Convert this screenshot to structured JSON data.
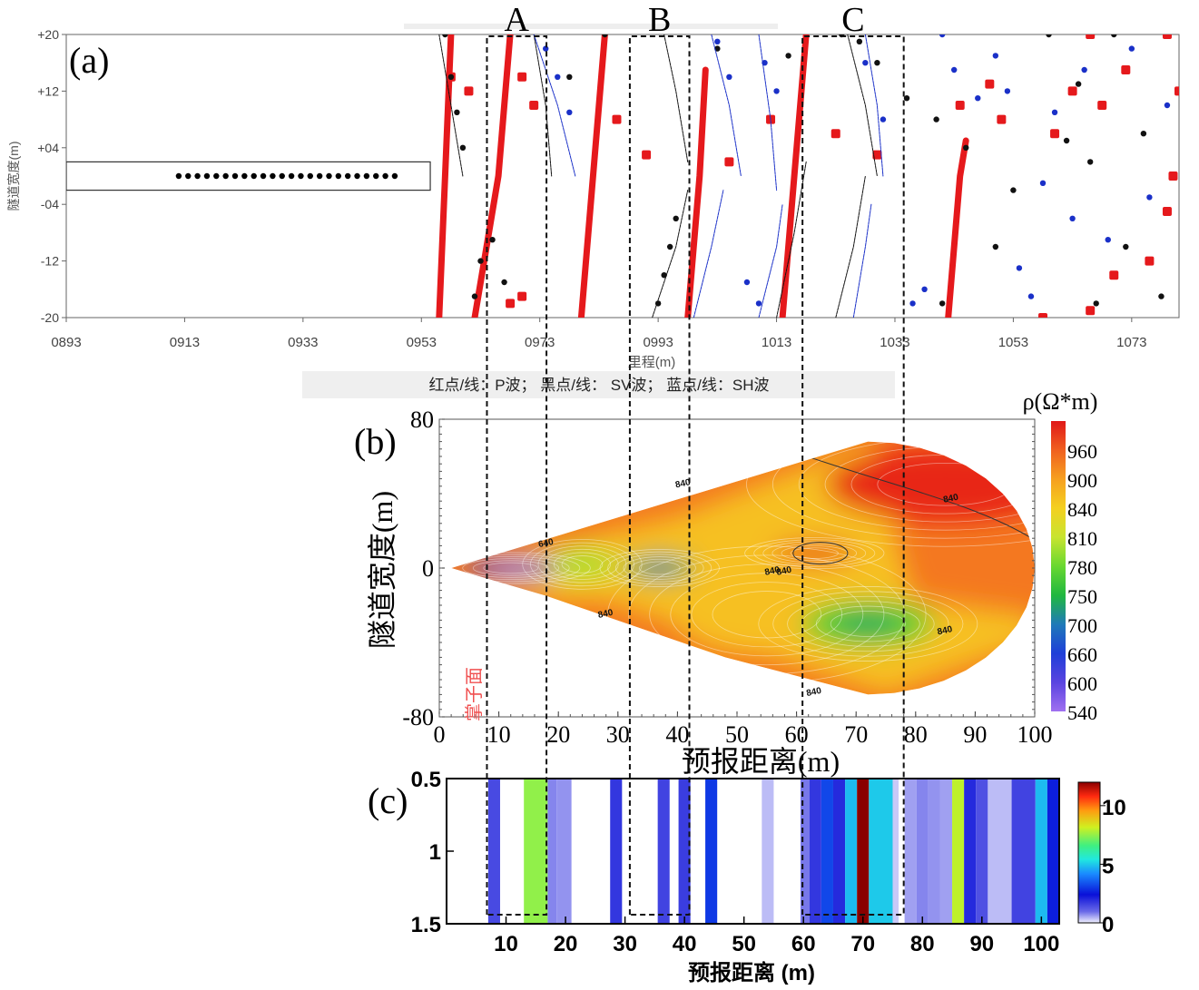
{
  "panel_labels": {
    "a": "(a)",
    "b": "(b)",
    "c": "(c)"
  },
  "zones": [
    {
      "label": "A",
      "from": 8,
      "to": 18
    },
    {
      "label": "B",
      "from": 32,
      "to": 42
    },
    {
      "label": "C",
      "from": 61,
      "to": 78
    }
  ],
  "chart_data": [
    {
      "type": "scatter",
      "panel": "a",
      "xlabel": "里程(m)",
      "ylabel": "隧道宽度(m)",
      "xticks": [
        "0893",
        "0913",
        "0933",
        "0953",
        "0973",
        "0993",
        "1013",
        "1033",
        "1053",
        "1073"
      ],
      "xlim": [
        893,
        1081
      ],
      "yticks": [
        "+20",
        "+12",
        "+04",
        "-04",
        "-12",
        "-20"
      ],
      "ylim": [
        -20,
        20
      ],
      "legend": "红点/线：P波； 黑点/线： SV波； 蓝点/线：SH波",
      "tunnel_box": {
        "x": [
          893,
          954.5
        ],
        "y": [
          -2,
          2
        ]
      },
      "sensor_points": {
        "x_from": 912,
        "x_to": 948.5,
        "count": 24,
        "y": 0
      },
      "series": [
        {
          "name": "P波",
          "color": "#e5191c",
          "lines": [
            [
              [
                956,
                -20
              ],
              [
                957,
                0
              ],
              [
                958,
                20
              ]
            ],
            [
              [
                962,
                -20
              ],
              [
                966,
                0
              ],
              [
                968,
                20
              ]
            ],
            [
              [
                980,
                -20
              ],
              [
                982,
                0
              ],
              [
                984,
                20
              ]
            ],
            [
              [
                998,
                -20
              ],
              [
                1000,
                0
              ],
              [
                1001,
                15
              ]
            ],
            [
              [
                1014,
                -20
              ],
              [
                1016,
                0
              ],
              [
                1018,
                20
              ]
            ],
            [
              [
                1042,
                -20
              ],
              [
                1044,
                0
              ],
              [
                1045,
                5
              ]
            ]
          ],
          "points": [
            [
              958,
              14
            ],
            [
              961,
              12
            ],
            [
              970,
              14
            ],
            [
              972,
              10
            ],
            [
              968,
              -18
            ],
            [
              970,
              -17
            ],
            [
              986,
              8
            ],
            [
              991,
              3
            ],
            [
              1005,
              2
            ],
            [
              1012,
              8
            ],
            [
              1023,
              6
            ],
            [
              1030,
              3
            ],
            [
              1044,
              10
            ],
            [
              1049,
              13
            ],
            [
              1051,
              8
            ],
            [
              1058,
              -20
            ],
            [
              1063,
              12
            ],
            [
              1066,
              20
            ],
            [
              1068,
              10
            ],
            [
              1072,
              15
            ],
            [
              1079,
              20
            ],
            [
              1081,
              12
            ],
            [
              1060,
              6
            ],
            [
              1066,
              -19
            ],
            [
              1070,
              -14
            ],
            [
              1076,
              -12
            ],
            [
              1079,
              -5
            ],
            [
              1080,
              0
            ]
          ]
        },
        {
          "name": "SV波",
          "color": "#111111",
          "lines": [
            [
              [
                956,
                20
              ],
              [
                958,
                10
              ],
              [
                960,
                0
              ]
            ],
            [
              [
                972,
                20
              ],
              [
                974,
                10
              ],
              [
                975,
                0
              ]
            ],
            [
              [
                994,
                20
              ],
              [
                996,
                12
              ],
              [
                998,
                2
              ]
            ],
            [
              [
                992,
                -20
              ],
              [
                996,
                -10
              ],
              [
                998,
                -2
              ]
            ],
            [
              [
                1013,
                -20
              ],
              [
                1016,
                -8
              ],
              [
                1018,
                2
              ]
            ],
            [
              [
                1023,
                -20
              ],
              [
                1026,
                -10
              ],
              [
                1028,
                0
              ]
            ],
            [
              [
                1025,
                20
              ],
              [
                1028,
                10
              ],
              [
                1030,
                0
              ]
            ]
          ],
          "points": [
            [
              957,
              20
            ],
            [
              958,
              14
            ],
            [
              959,
              9
            ],
            [
              960,
              4
            ],
            [
              962,
              -17
            ],
            [
              963,
              -12
            ],
            [
              965,
              -9
            ],
            [
              967,
              -15
            ],
            [
              978,
              14
            ],
            [
              984,
              20
            ],
            [
              993,
              -18
            ],
            [
              994,
              -14
            ],
            [
              995,
              -10
            ],
            [
              996,
              -6
            ],
            [
              1003,
              18
            ],
            [
              1015,
              17
            ],
            [
              1024,
              20
            ],
            [
              1027,
              19
            ],
            [
              1030,
              16
            ],
            [
              1035,
              11
            ],
            [
              1040,
              8
            ],
            [
              1041,
              -18
            ],
            [
              1045,
              4
            ],
            [
              1050,
              -10
            ],
            [
              1053,
              -2
            ],
            [
              1059,
              20
            ],
            [
              1062,
              5
            ],
            [
              1064,
              13
            ],
            [
              1066,
              2
            ],
            [
              1067,
              -18
            ],
            [
              1070,
              20
            ],
            [
              1072,
              -10
            ],
            [
              1075,
              6
            ],
            [
              1078,
              -17
            ]
          ]
        },
        {
          "name": "SH波",
          "color": "#1a30c8",
          "lines": [
            [
              [
                972,
                20
              ],
              [
                976,
                10
              ],
              [
                979,
                0
              ]
            ],
            [
              [
                1002,
                20
              ],
              [
                1005,
                10
              ],
              [
                1007,
                0
              ]
            ],
            [
              [
                999,
                -20
              ],
              [
                1002,
                -10
              ],
              [
                1004,
                -2
              ]
            ],
            [
              [
                1010,
                20
              ],
              [
                1012,
                8
              ],
              [
                1013,
                -2
              ]
            ],
            [
              [
                1010,
                -20
              ],
              [
                1013,
                -10
              ],
              [
                1014,
                -4
              ]
            ],
            [
              [
                1028,
                20
              ],
              [
                1030,
                10
              ],
              [
                1031,
                0
              ]
            ],
            [
              [
                1026,
                -20
              ],
              [
                1028,
                -10
              ],
              [
                1029,
                -4
              ]
            ]
          ],
          "points": [
            [
              974,
              18
            ],
            [
              976,
              14
            ],
            [
              978,
              9
            ],
            [
              1003,
              19
            ],
            [
              1005,
              14
            ],
            [
              1008,
              -15
            ],
            [
              1010,
              -18
            ],
            [
              1011,
              16
            ],
            [
              1013,
              12
            ],
            [
              1028,
              16
            ],
            [
              1031,
              8
            ],
            [
              1036,
              -18
            ],
            [
              1038,
              -16
            ],
            [
              1041,
              20
            ],
            [
              1043,
              15
            ],
            [
              1047,
              11
            ],
            [
              1050,
              17
            ],
            [
              1052,
              12
            ],
            [
              1054,
              -13
            ],
            [
              1056,
              -17
            ],
            [
              1058,
              -1
            ],
            [
              1060,
              9
            ],
            [
              1063,
              -6
            ],
            [
              1065,
              15
            ],
            [
              1069,
              -9
            ],
            [
              1073,
              18
            ],
            [
              1076,
              -3
            ],
            [
              1079,
              10
            ]
          ]
        }
      ]
    },
    {
      "type": "heatmap",
      "panel": "b",
      "xlabel": "预报距离(m)",
      "ylabel": "隧道宽度(m)",
      "xticks": [
        0,
        10,
        20,
        30,
        40,
        50,
        60,
        70,
        80,
        90,
        100
      ],
      "xlim": [
        0,
        100
      ],
      "yticks": [
        80,
        0,
        -80
      ],
      "ylim": [
        -80,
        80
      ],
      "colorbar_title": "ρ(Ω*m)",
      "colorbar_ticks": [
        960,
        900,
        840,
        810,
        780,
        750,
        700,
        660,
        600,
        540
      ],
      "contour_labels": [
        "640",
        "840",
        "840",
        "840",
        "840",
        "840",
        "840",
        "840"
      ],
      "side_label": "掌子面",
      "extent": {
        "apex": [
          2,
          0
        ],
        "top_right": [
          72,
          68
        ],
        "right_top": [
          100,
          10
        ],
        "right_bottom": [
          100,
          -30
        ],
        "bottom_right": [
          72,
          -68
        ],
        "lower_edge": [
          [
            18,
            -15
          ],
          [
            48,
            -48
          ],
          [
            72,
            -68
          ]
        ]
      },
      "features": [
        {
          "kind": "low",
          "x": 12,
          "y": 0,
          "rx": 8,
          "ry": 5,
          "value": 600
        },
        {
          "kind": "low",
          "x": 37,
          "y": 0,
          "rx": 6,
          "ry": 6,
          "value": 700
        },
        {
          "kind": "low",
          "x": 72,
          "y": -30,
          "rx": 11,
          "ry": 12,
          "value": 740
        },
        {
          "kind": "mid",
          "x": 24,
          "y": 2,
          "rx": 6,
          "ry": 8,
          "value": 770
        },
        {
          "kind": "mid",
          "x": 55,
          "y": -25,
          "rx": 16,
          "ry": 22,
          "value": 815
        },
        {
          "kind": "high",
          "x": 63,
          "y": 8,
          "rx": 7,
          "ry": 5,
          "value": 930
        },
        {
          "kind": "high",
          "x": 85,
          "y": 45,
          "rx": 20,
          "ry": 20,
          "value": 960
        }
      ]
    },
    {
      "type": "heatmap",
      "panel": "c",
      "xlabel": "预报距离 (m)",
      "xticks": [
        10,
        20,
        30,
        40,
        50,
        60,
        70,
        80,
        90,
        100
      ],
      "xlim": [
        0,
        103
      ],
      "yticks": [
        "0.5",
        "1",
        "1.5"
      ],
      "ylim": [
        0.5,
        1.5
      ],
      "colorbar_ticks": [
        10,
        5,
        0
      ],
      "colorbar_range": [
        0,
        12
      ],
      "bands": [
        {
          "from": 7,
          "to": 9,
          "value": 1.5
        },
        {
          "from": 13,
          "to": 17,
          "value": 7.5
        },
        {
          "from": 17,
          "to": 18.5,
          "value": 0.8
        },
        {
          "from": 18.5,
          "to": 21,
          "value": 0.7
        },
        {
          "from": 27.5,
          "to": 29.5,
          "value": 1.8
        },
        {
          "from": 35.5,
          "to": 37.5,
          "value": 1.6
        },
        {
          "from": 39,
          "to": 41,
          "value": 1.7
        },
        {
          "from": 43.5,
          "to": 45.5,
          "value": 3.0
        },
        {
          "from": 53,
          "to": 55,
          "value": 0.4
        },
        {
          "from": 59.5,
          "to": 61,
          "value": 0.9
        },
        {
          "from": 61,
          "to": 63,
          "value": 1.8
        },
        {
          "from": 63,
          "to": 65,
          "value": 3.2
        },
        {
          "from": 65,
          "to": 67,
          "value": 2.0
        },
        {
          "from": 67,
          "to": 69,
          "value": 4.8
        },
        {
          "from": 69,
          "to": 71,
          "value": 12.0
        },
        {
          "from": 71,
          "to": 75,
          "value": 5.0
        },
        {
          "from": 75,
          "to": 76,
          "value": 0.3
        },
        {
          "from": 77,
          "to": 79,
          "value": 0.6
        },
        {
          "from": 79,
          "to": 81,
          "value": 0.8
        },
        {
          "from": 81,
          "to": 83,
          "value": 0.7
        },
        {
          "from": 83,
          "to": 85,
          "value": 0.6
        },
        {
          "from": 85,
          "to": 87,
          "value": 8.0
        },
        {
          "from": 87,
          "to": 89,
          "value": 2.0
        },
        {
          "from": 89,
          "to": 91,
          "value": 1.4
        },
        {
          "from": 91,
          "to": 95,
          "value": 0.4
        },
        {
          "from": 95,
          "to": 99,
          "value": 1.6
        },
        {
          "from": 99,
          "to": 101,
          "value": 4.8
        },
        {
          "from": 101,
          "to": 103,
          "value": 2.6
        }
      ]
    }
  ]
}
